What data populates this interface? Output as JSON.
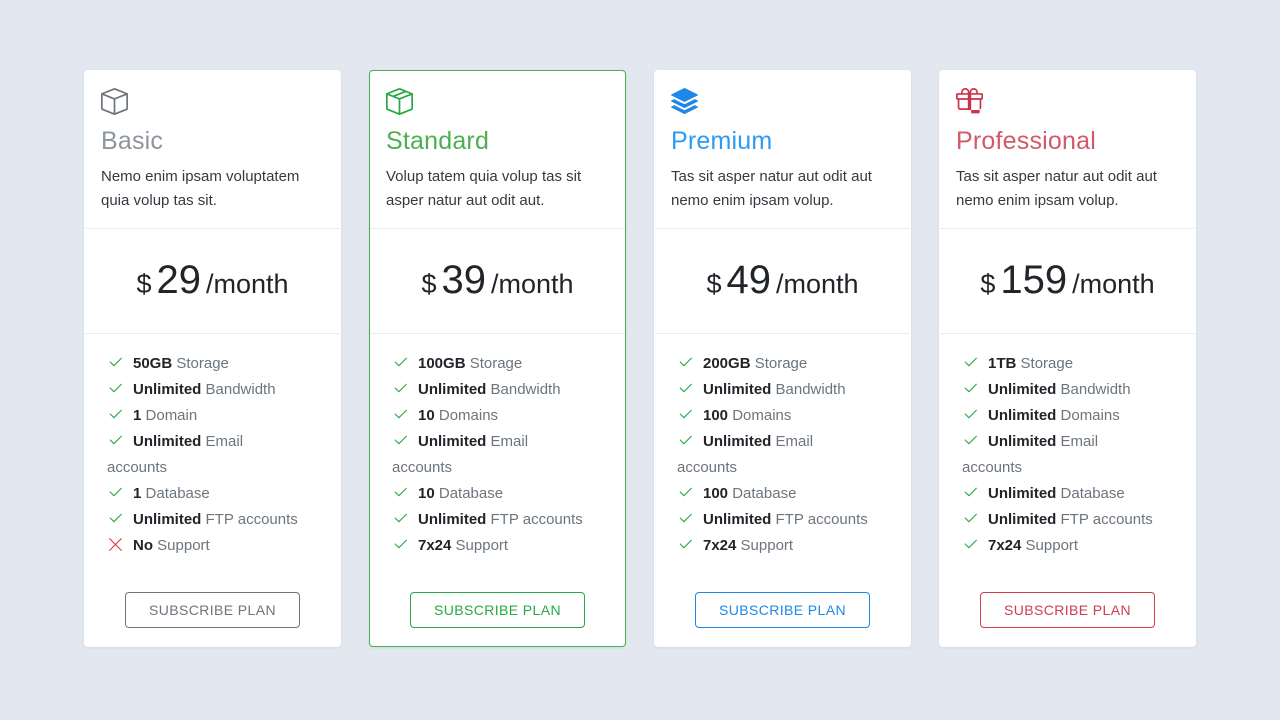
{
  "page": {
    "background": "#e3e8f0"
  },
  "shared": {
    "check_color": "#28a745",
    "cross_color": "#dc3545",
    "feature_value_color": "#212529",
    "feature_label_color": "#6c757d"
  },
  "plans": [
    {
      "icon": "box-icon",
      "title": "Basic",
      "description": "Nemo enim ipsam voluptatem quia volup tas sit.",
      "currency": "$",
      "price": "29",
      "period": "/month",
      "button_label": "SUBSCRIBE PLAN",
      "colors": {
        "icon": "#6c757d",
        "title": "#8e959d",
        "button": "#6c757d",
        "card_border": ""
      },
      "features": [
        {
          "included": true,
          "value": "50GB",
          "label": "Storage"
        },
        {
          "included": true,
          "value": "Unlimited",
          "label": "Bandwidth"
        },
        {
          "included": true,
          "value": "1",
          "label": "Domain"
        },
        {
          "included": true,
          "value": "Unlimited",
          "label": "Email accounts"
        },
        {
          "included": true,
          "value": "1",
          "label": "Database"
        },
        {
          "included": true,
          "value": "Unlimited",
          "label": "FTP accounts"
        },
        {
          "included": false,
          "value": "No",
          "label": "Support"
        }
      ]
    },
    {
      "icon": "box-seam-icon",
      "title": "Standard",
      "description": "Volup tatem quia volup tas sit asper natur aut odit aut.",
      "currency": "$",
      "price": "39",
      "period": "/month",
      "button_label": "SUBSCRIBE PLAN",
      "colors": {
        "icon": "#28a745",
        "title": "#4caf50",
        "button": "#28a745",
        "card_border": "#4caf50"
      },
      "features": [
        {
          "included": true,
          "value": "100GB",
          "label": "Storage"
        },
        {
          "included": true,
          "value": "Unlimited",
          "label": "Bandwidth"
        },
        {
          "included": true,
          "value": "10",
          "label": "Domains"
        },
        {
          "included": true,
          "value": "Unlimited",
          "label": "Email accounts"
        },
        {
          "included": true,
          "value": "10",
          "label": "Database"
        },
        {
          "included": true,
          "value": "Unlimited",
          "label": "FTP accounts"
        },
        {
          "included": true,
          "value": "7x24",
          "label": "Support"
        }
      ]
    },
    {
      "icon": "stack-icon",
      "title": "Premium",
      "description": "Tas sit asper natur aut odit aut nemo enim ipsam volup.",
      "currency": "$",
      "price": "49",
      "period": "/month",
      "button_label": "SUBSCRIBE PLAN",
      "colors": {
        "icon": "#1d88e5",
        "title": "#2e9bf2",
        "button": "#1e88e5",
        "card_border": ""
      },
      "features": [
        {
          "included": true,
          "value": "200GB",
          "label": "Storage"
        },
        {
          "included": true,
          "value": "Unlimited",
          "label": "Bandwidth"
        },
        {
          "included": true,
          "value": "100",
          "label": "Domains"
        },
        {
          "included": true,
          "value": "Unlimited",
          "label": "Email accounts"
        },
        {
          "included": true,
          "value": "100",
          "label": "Database"
        },
        {
          "included": true,
          "value": "Unlimited",
          "label": "FTP accounts"
        },
        {
          "included": true,
          "value": "7x24",
          "label": "Support"
        }
      ]
    },
    {
      "icon": "gift-icon",
      "title": "Professional",
      "description": "Tas sit asper natur aut odit aut nemo enim ipsam volup.",
      "currency": "$",
      "price": "159",
      "period": "/month",
      "button_label": "SUBSCRIBE PLAN",
      "colors": {
        "icon": "#cd3246",
        "title": "#d15a68",
        "button": "#d23c50",
        "card_border": ""
      },
      "features": [
        {
          "included": true,
          "value": "1TB",
          "label": "Storage"
        },
        {
          "included": true,
          "value": "Unlimited",
          "label": "Bandwidth"
        },
        {
          "included": true,
          "value": "Unlimited",
          "label": "Domains"
        },
        {
          "included": true,
          "value": "Unlimited",
          "label": "Email accounts"
        },
        {
          "included": true,
          "value": "Unlimited",
          "label": "Database"
        },
        {
          "included": true,
          "value": "Unlimited",
          "label": "FTP accounts"
        },
        {
          "included": true,
          "value": "7x24",
          "label": "Support"
        }
      ]
    }
  ]
}
